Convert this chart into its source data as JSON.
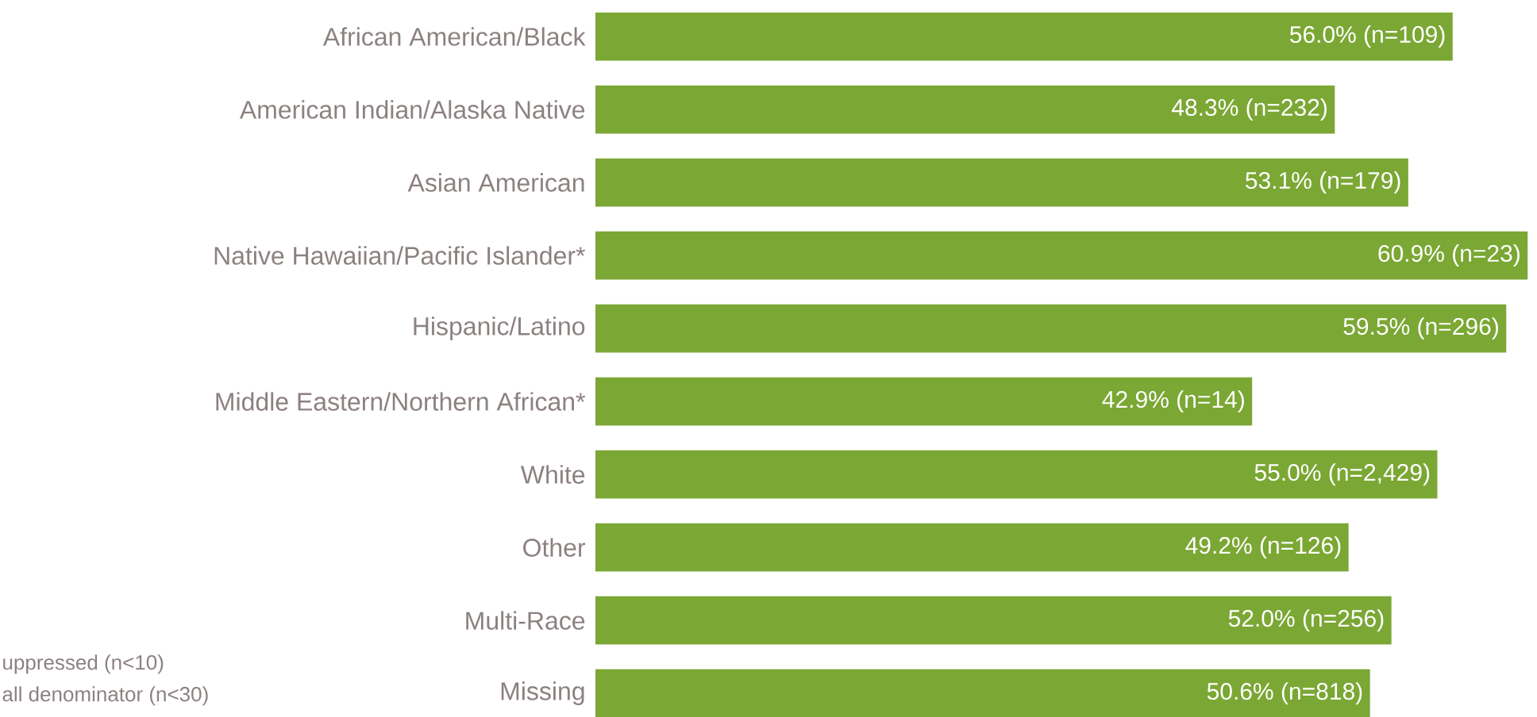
{
  "chart_data": {
    "type": "bar",
    "orientation": "horizontal",
    "categories": [
      "African American/Black",
      "American Indian/Alaska Native",
      "Asian American",
      "Native Hawaiian/Pacific Islander*",
      "Hispanic/Latino",
      "Middle Eastern/Northern African*",
      "White",
      "Other",
      "Multi-Race",
      "Missing"
    ],
    "values": [
      56.0,
      48.3,
      53.1,
      60.9,
      59.5,
      42.9,
      55.0,
      49.2,
      52.0,
      50.6
    ],
    "value_labels": [
      "56.0% (n=109)",
      "48.3% (n=232)",
      "53.1% (n=179)",
      "60.9% (n=23)",
      "59.5% (n=296)",
      "42.9% (n=14)",
      "55.0% (n=2,429)",
      "49.2% (n=126)",
      "52.0% (n=256)",
      "50.6% (n=818)"
    ],
    "color": "#7ba734",
    "annotations": [
      "uppressed (n<10)",
      "all denominator (n<30)"
    ]
  }
}
